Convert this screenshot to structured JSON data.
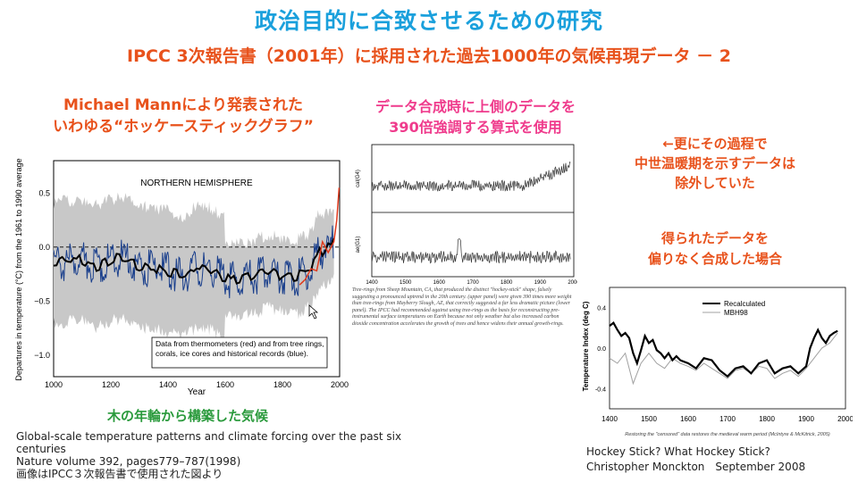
{
  "slide": {
    "title": "政治目的に合致させるための研究",
    "subtitle": "IPCC 3次報告書（2001年）に採用された過去1000年の気候再現データ － 2"
  },
  "left": {
    "heading_line1": "Michael Mannにより発表された",
    "heading_line2": "いわゆる“ホッケースティックグラフ”",
    "caption_green": "木の年輪から構築した気候",
    "citation_line1": "Global-scale temperature patterns and climate forcing over the past six centuries",
    "citation_line2": "Nature volume 392, pages779–787(1998)",
    "citation_line3": "画像はIPCC３次報告書で使用された図より"
  },
  "middle": {
    "heading_line1": "データ合成時に上側のデータを",
    "heading_line2": "390倍強調する算式を使用"
  },
  "right": {
    "note1_line1": "←更にその過程で",
    "note1_line2": "中世温暖期を示すデータは",
    "note1_line3": "除外していた",
    "note2_line1": "得られたデータを",
    "note2_line2": "偏りなく合成した場合",
    "source_line1": "Hockey Stick? What Hockey Stick?",
    "source_line2": "Christopher Monckton　September 2008"
  },
  "chart_data": [
    {
      "type": "line",
      "title": "NORTHERN HEMISPHERE",
      "ylabel": "Departures in temperature (°C) from the 1961 to 1990 average",
      "xlabel": "Year",
      "xlim": [
        1000,
        2000
      ],
      "ylim": [
        -1.2,
        0.8
      ],
      "x_ticks": [
        "1000",
        "1200",
        "1400",
        "1600",
        "1800",
        "2000"
      ],
      "y_ticks": [
        "−1.0",
        "−0.5",
        "0.0",
        "0.5"
      ],
      "legend_text": "Data from thermometers (red) and from tree rings, corals, ice cores and historical records (blue).",
      "legend_position": "bottom-right",
      "colors": {
        "uncertainty": "#c8c8c8",
        "proxy": "#1a3f8c",
        "smooth": "#000000",
        "thermometer": "#e03a1e"
      },
      "series": [
        {
          "values_role": "proxy_smoothed",
          "x": [
            1000,
            1050,
            1100,
            1150,
            1200,
            1250,
            1300,
            1350,
            1400,
            1450,
            1500,
            1550,
            1600,
            1650,
            1700,
            1750,
            1800,
            1850,
            1900,
            1925,
            1950,
            1975,
            1980
          ],
          "y": [
            -0.15,
            -0.13,
            -0.12,
            -0.18,
            -0.12,
            -0.1,
            -0.18,
            -0.2,
            -0.22,
            -0.28,
            -0.18,
            -0.2,
            -0.3,
            -0.3,
            -0.28,
            -0.22,
            -0.26,
            -0.28,
            -0.2,
            -0.05,
            -0.02,
            0.02,
            0.05
          ]
        },
        {
          "values_role": "thermometer",
          "x": [
            1860,
            1880,
            1900,
            1920,
            1940,
            1960,
            1980,
            1990,
            1998
          ],
          "y": [
            -0.35,
            -0.3,
            -0.2,
            -0.22,
            0.05,
            -0.05,
            0.05,
            0.25,
            0.55
          ]
        }
      ]
    },
    {
      "type": "line",
      "panels": [
        {
          "ylabel": "cal(G4)",
          "note": "upper",
          "x_range": [
            1400,
            2000
          ]
        },
        {
          "ylabel": "ae(G1)",
          "note": "lower",
          "x_range": [
            1400,
            2000
          ]
        }
      ],
      "x_ticks": [
        "1400",
        "1500",
        "1600",
        "1700",
        "1800",
        "1900",
        "2000"
      ],
      "caption": "Tree-rings from Sheep Mountain, CA, that produced the distinct \"hockey-stick\" shape, falsely suggesting a pronounced uptrend in the 20th century. (upper panel) were given 390 times more weight than tree-rings from Mayberry Slough, AZ, that correctly suggested a far less dramatic picture (lower panel). The IPCC had recommended against using tree-rings as the basis for reconstructing pre-instrumental surface temperatures on Earth because not only weather but also increased carbon dioxide concentration accelerates the growth of trees and hence widens their annual growth-rings."
    },
    {
      "type": "line",
      "ylabel": "Temperature Index (deg C)",
      "xlim": [
        1400,
        2000
      ],
      "ylim": [
        -0.6,
        0.6
      ],
      "x_ticks": [
        "1400",
        "1500",
        "1600",
        "1700",
        "1800",
        "1900",
        "2000"
      ],
      "y_ticks": [
        "0.4",
        "0.0",
        "-0.4"
      ],
      "legend_position": "top-right",
      "caption": "Restoring the \"censored\" data restores the medieval warm period (McIntyre & McKitrick, 2005)",
      "series": [
        {
          "name": "Recalculated",
          "color": "#000000",
          "x": [
            1400,
            1410,
            1420,
            1430,
            1440,
            1450,
            1460,
            1470,
            1480,
            1490,
            1500,
            1510,
            1520,
            1530,
            1540,
            1550,
            1560,
            1570,
            1580,
            1600,
            1620,
            1640,
            1660,
            1680,
            1700,
            1720,
            1740,
            1760,
            1780,
            1800,
            1820,
            1840,
            1860,
            1880,
            1900,
            1910,
            1920,
            1930,
            1940,
            1950,
            1960,
            1970,
            1980
          ],
          "y": [
            0.22,
            0.25,
            0.18,
            0.12,
            0.15,
            0.1,
            -0.05,
            -0.15,
            -0.02,
            0.12,
            0.05,
            0.08,
            -0.02,
            -0.05,
            -0.1,
            -0.05,
            -0.12,
            -0.08,
            -0.12,
            -0.15,
            -0.2,
            -0.1,
            -0.12,
            -0.22,
            -0.28,
            -0.2,
            -0.18,
            -0.25,
            -0.15,
            -0.12,
            -0.25,
            -0.2,
            -0.18,
            -0.25,
            -0.18,
            0.0,
            0.1,
            0.18,
            0.1,
            0.05,
            0.12,
            0.15,
            0.17
          ]
        },
        {
          "name": "MBH98",
          "color": "#a0a0a0",
          "x": [
            1400,
            1420,
            1440,
            1460,
            1480,
            1500,
            1520,
            1540,
            1560,
            1580,
            1600,
            1620,
            1640,
            1660,
            1680,
            1700,
            1720,
            1740,
            1760,
            1780,
            1800,
            1820,
            1840,
            1860,
            1880,
            1900,
            1920,
            1940,
            1960,
            1980
          ],
          "y": [
            -0.1,
            -0.15,
            -0.05,
            -0.35,
            -0.15,
            -0.05,
            -0.15,
            -0.2,
            -0.1,
            -0.15,
            -0.18,
            -0.22,
            -0.15,
            -0.2,
            -0.25,
            -0.3,
            -0.22,
            -0.2,
            -0.25,
            -0.18,
            -0.2,
            -0.3,
            -0.25,
            -0.22,
            -0.28,
            -0.2,
            -0.1,
            0.0,
            0.05,
            0.15
          ]
        }
      ]
    }
  ]
}
